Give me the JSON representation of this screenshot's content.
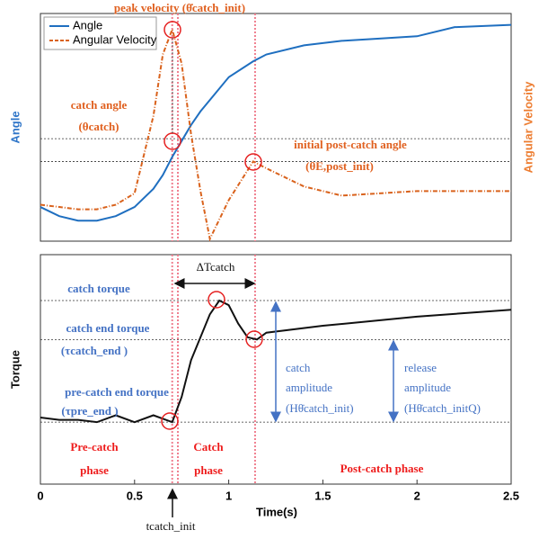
{
  "chart_data": [
    {
      "type": "line",
      "ylabel": "Angle",
      "y2label": "Angular Velocity",
      "legend": "upper left",
      "x": [
        0,
        0.1,
        0.2,
        0.3,
        0.4,
        0.5,
        0.6,
        0.65,
        0.7,
        0.75,
        0.8,
        0.85,
        0.9,
        1.0,
        1.13,
        1.2,
        1.4,
        1.6,
        1.8,
        2.0,
        2.2,
        2.5
      ],
      "xlim": [
        0,
        2.5
      ],
      "ylim": [
        0,
        10
      ],
      "series": [
        {
          "name": "Angle",
          "color": "#1f6fc0",
          "dash": false,
          "values": [
            1.5,
            1.1,
            0.9,
            0.9,
            1.1,
            1.5,
            2.3,
            2.9,
            3.7,
            4.4,
            5.1,
            5.7,
            6.2,
            7.2,
            7.9,
            8.2,
            8.6,
            8.8,
            8.9,
            9.0,
            9.4,
            9.5
          ]
        },
        {
          "name": "Angular Velocity",
          "color": "#d9621c",
          "dash": true,
          "values": [
            1.6,
            1.5,
            1.4,
            1.4,
            1.6,
            2.1,
            5.5,
            8.2,
            9.3,
            7.8,
            4.7,
            2.2,
            0.1,
            1.8,
            3.5,
            3.2,
            2.4,
            2.0,
            2.1,
            2.2,
            2.2,
            2.2
          ]
        }
      ],
      "hlines": [
        4.5,
        3.5
      ],
      "vlines": [
        0.7,
        0.73,
        1.14
      ],
      "annotations": [
        {
          "text": "peak velocity (θ̇catch_init)",
          "color": "#e0601f"
        },
        {
          "text": "catch angle",
          "color": "#e0601f"
        },
        {
          "text": "(θcatch)",
          "color": "#e0601f"
        },
        {
          "text": "initial post-catch angle",
          "color": "#e0601f"
        },
        {
          "text": "(θE,post_init)",
          "color": "#e0601f"
        }
      ]
    },
    {
      "type": "line",
      "ylabel": "Torque",
      "xlabel": "Time(s)",
      "x": [
        0,
        0.1,
        0.2,
        0.3,
        0.4,
        0.5,
        0.6,
        0.7,
        0.75,
        0.8,
        0.9,
        0.95,
        1.0,
        1.05,
        1.1,
        1.15,
        1.2,
        1.5,
        2.0,
        2.5
      ],
      "xlim": [
        0,
        2.5
      ],
      "ylim": [
        0,
        10
      ],
      "xticks": [
        0,
        0.5,
        1,
        1.5,
        2,
        2.5
      ],
      "series": [
        {
          "name": "Torque",
          "color": "#111111",
          "dash": false,
          "values": [
            2.9,
            2.8,
            2.8,
            2.7,
            3.0,
            2.7,
            3.0,
            2.7,
            3.8,
            5.4,
            7.4,
            8.0,
            7.8,
            7.0,
            6.4,
            6.3,
            6.6,
            6.9,
            7.3,
            7.6
          ]
        }
      ],
      "hlines": [
        8.0,
        6.3,
        2.7
      ],
      "vlines": [
        0.7,
        0.73,
        1.14
      ],
      "annotations": [
        {
          "text": "ΔTcatch",
          "color": "#111111"
        },
        {
          "text": "catch torque",
          "color": "#4472c4"
        },
        {
          "text": "catch end torque",
          "color": "#4472c4"
        },
        {
          "text": "(τcatch_end )",
          "color": "#4472c4"
        },
        {
          "text": "pre-catch end torque",
          "color": "#4472c4"
        },
        {
          "text": "(τpre_end )",
          "color": "#4472c4"
        },
        {
          "text": "catch",
          "color": "#4472c4"
        },
        {
          "text": "amplitude",
          "color": "#4472c4"
        },
        {
          "text": "(Hθ̇catch_init)",
          "color": "#4472c4"
        },
        {
          "text": "release",
          "color": "#4472c4"
        },
        {
          "text": "amplitude",
          "color": "#4472c4"
        },
        {
          "text": "(Hθ̇catch_initQ)",
          "color": "#4472c4"
        },
        {
          "text": "Pre-catch",
          "color": "#ee1c1c"
        },
        {
          "text": "phase",
          "color": "#ee1c1c"
        },
        {
          "text": "Catch",
          "color": "#ee1c1c"
        },
        {
          "text": "phase",
          "color": "#ee1c1c"
        },
        {
          "text": "Post-catch phase",
          "color": "#ee1c1c"
        },
        {
          "text": "tcatch_init",
          "color": "#111111"
        }
      ]
    }
  ]
}
